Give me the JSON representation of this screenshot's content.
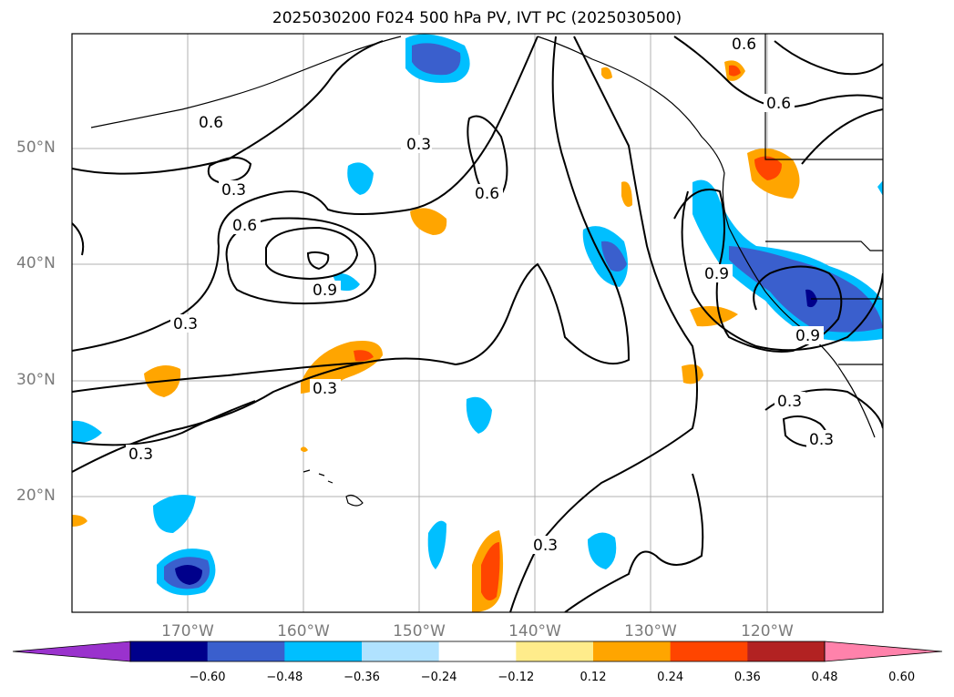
{
  "title": "2025030200 F024 500 hPa PV, IVT PC (2025030500)",
  "lat_labels": [
    "50°N",
    "40°N",
    "30°N",
    "20°N"
  ],
  "lon_labels": [
    "170°W",
    "160°W",
    "150°W",
    "140°W",
    "130°W",
    "120°W"
  ],
  "contour_labels": [
    "0.6",
    "0.3",
    "0.6",
    "0.3",
    "0.6",
    "0.9",
    "0.3",
    "0.3",
    "0.3",
    "0.6",
    "0.6",
    "0.9",
    "0.9",
    "0.3",
    "0.3",
    "0.3"
  ],
  "colorbar": {
    "ticks": [
      "−0.60",
      "−0.48",
      "−0.36",
      "−0.24",
      "−0.12",
      "0.12",
      "0.24",
      "0.36",
      "0.48",
      "0.60"
    ],
    "colors": [
      "#9a32cd",
      "#00008b",
      "#3a5fcd",
      "#00bfff",
      "#b0e2ff",
      "#ffffff",
      "#ffec8b",
      "#ffa500",
      "#ff4500",
      "#b22222",
      "#ff82ab"
    ]
  }
}
